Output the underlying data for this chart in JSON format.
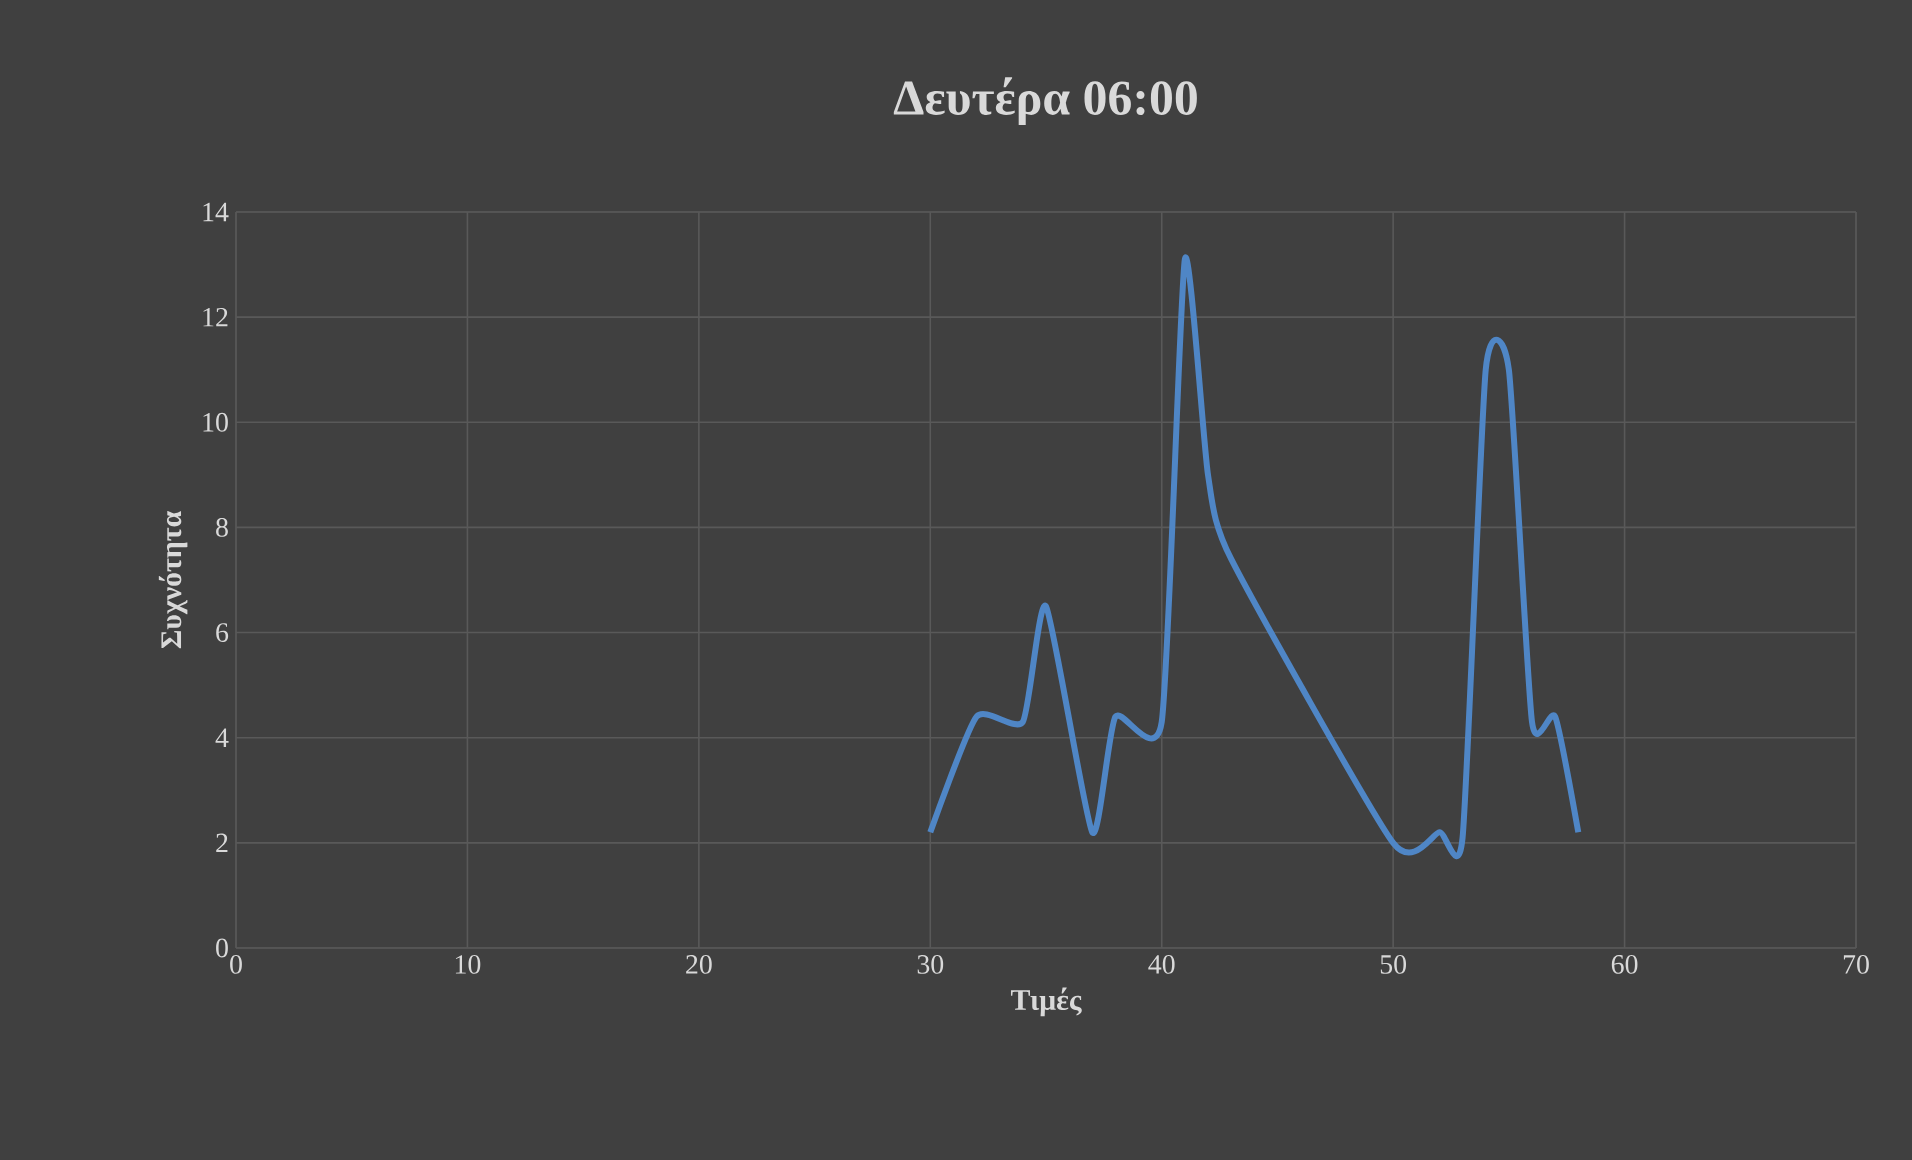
{
  "chart_data": {
    "type": "line",
    "title": "Δευτέρα 06:00",
    "xlabel": "Τιμές",
    "ylabel": "Συχνότητα",
    "x": [
      30,
      32,
      34,
      35,
      37,
      38,
      40,
      41,
      42,
      43,
      50,
      52,
      53,
      54,
      55,
      56,
      57,
      58
    ],
    "series": [
      {
        "color": "#4f86c6",
        "values": [
          2.2,
          4.4,
          4.3,
          6.5,
          2.2,
          4.4,
          4.3,
          13.1,
          9,
          7.4,
          2,
          2.2,
          2.1,
          11,
          11,
          4.3,
          4.4,
          2.2
        ]
      }
    ],
    "xlim": [
      0,
      70
    ],
    "xticks": [
      0,
      10,
      20,
      30,
      40,
      50,
      60,
      70
    ],
    "ylim": [
      0,
      14
    ],
    "yticks": [
      0,
      2,
      4,
      6,
      8,
      10,
      12,
      14
    ],
    "grid": true,
    "marker": "none",
    "line_style": "solid"
  }
}
